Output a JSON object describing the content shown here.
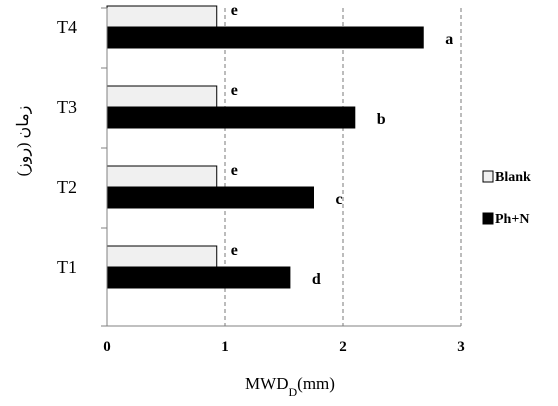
{
  "chart_data": {
    "type": "bar",
    "orientation": "horizontal",
    "categories": [
      "T1",
      "T2",
      "T3",
      "T4"
    ],
    "series": [
      {
        "name": "Blank",
        "values": [
          0.93,
          0.93,
          0.93,
          0.93
        ],
        "labels": [
          "e",
          "e",
          "e",
          "e"
        ],
        "color": "#f0f0f0"
      },
      {
        "name": "Ph+N",
        "values": [
          1.55,
          1.75,
          2.1,
          2.68
        ],
        "labels": [
          "d",
          "c",
          "b",
          "a"
        ],
        "color": "#000000"
      }
    ],
    "xlabel_main": "MWD",
    "xlabel_sub": "D",
    "xlabel_unit": "(mm)",
    "ylabel": "زمان (روز)",
    "xlim": [
      0,
      3
    ],
    "xticks": [
      "0",
      "1",
      "2",
      "3"
    ],
    "grid": "vertical dashed",
    "legend_position": "right"
  }
}
